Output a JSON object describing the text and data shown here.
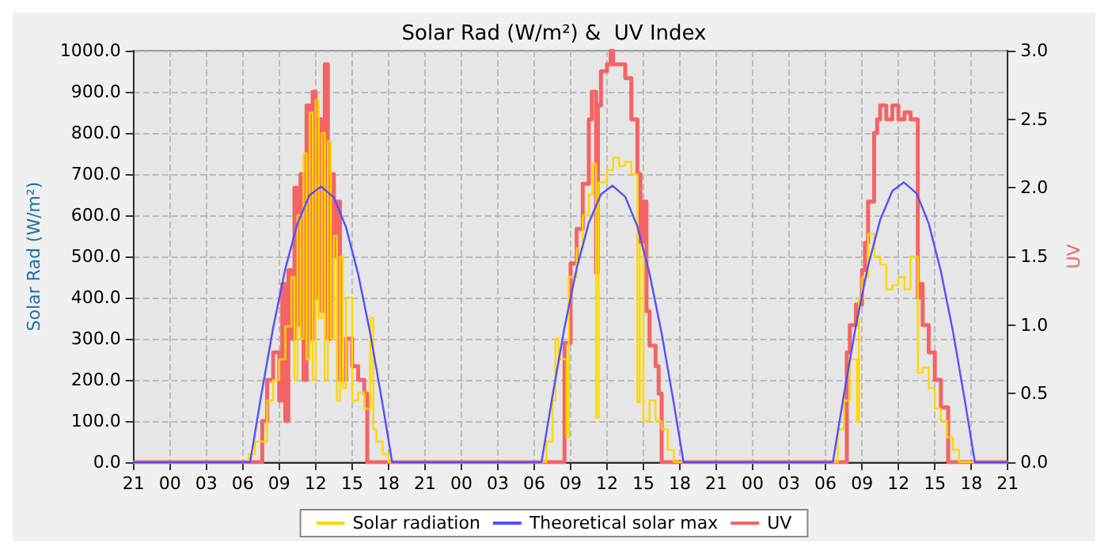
{
  "chart_data": {
    "type": "step",
    "title": "Solar Rad (W/m²) &  UV Index",
    "ylabel": "Solar Rad (W/m²)",
    "y2label": "UV",
    "xlim": [
      "--01-01T21:00",
      "--01-04T21:00"
    ],
    "xticks": [
      {
        "value": "--01-01T21:00",
        "label": "21"
      },
      {
        "value": "--01-02T00:00",
        "label": "00"
      },
      {
        "value": "--01-02T03:00",
        "label": "03"
      },
      {
        "value": "--01-02T06:00",
        "label": "06"
      },
      {
        "value": "--01-02T09:00",
        "label": "09"
      },
      {
        "value": "--01-02T12:00",
        "label": "12"
      },
      {
        "value": "--01-02T15:00",
        "label": "15"
      },
      {
        "value": "--01-02T18:00",
        "label": "18"
      },
      {
        "value": "--01-02T21:00",
        "label": "21"
      },
      {
        "value": "--01-03T00:00",
        "label": "00"
      },
      {
        "value": "--01-03T03:00",
        "label": "03"
      },
      {
        "value": "--01-03T06:00",
        "label": "06"
      },
      {
        "value": "--01-03T09:00",
        "label": "09"
      },
      {
        "value": "--01-03T12:00",
        "label": "12"
      },
      {
        "value": "--01-03T15:00",
        "label": "15"
      },
      {
        "value": "--01-03T18:00",
        "label": "18"
      },
      {
        "value": "--01-03T21:00",
        "label": "21"
      },
      {
        "value": "--01-04T00:00",
        "label": "00"
      },
      {
        "value": "--01-04T03:00",
        "label": "03"
      },
      {
        "value": "--01-04T06:00",
        "label": "06"
      },
      {
        "value": "--01-04T09:00",
        "label": "09"
      },
      {
        "value": "--01-04T12:00",
        "label": "12"
      },
      {
        "value": "--01-04T15:00",
        "label": "15"
      },
      {
        "value": "--01-04T18:00",
        "label": "18"
      },
      {
        "value": "--01-04T21:00",
        "label": "21"
      }
    ],
    "ylim": [
      0,
      1000
    ],
    "yticks": [
      {
        "value": 0,
        "label": "0.0"
      },
      {
        "value": 100,
        "label": "100.0"
      },
      {
        "value": 200,
        "label": "200.0"
      },
      {
        "value": 300,
        "label": "300.0"
      },
      {
        "value": 400,
        "label": "400.0"
      },
      {
        "value": 500,
        "label": "500.0"
      },
      {
        "value": 600,
        "label": "600.0"
      },
      {
        "value": 700,
        "label": "700.0"
      },
      {
        "value": 800,
        "label": "800.0"
      },
      {
        "value": 900,
        "label": "900.0"
      },
      {
        "value": 1000,
        "label": "1000.0"
      }
    ],
    "y2lim": [
      0,
      3
    ],
    "y2ticks": [
      {
        "value": 0,
        "label": "0.0"
      },
      0.5,
      {
        "value": 1,
        "label": "1.0"
      },
      1.5,
      {
        "value": 2,
        "label": "2.0"
      },
      2.5,
      {
        "value": 3,
        "label": "3.0"
      }
    ],
    "grid": true,
    "legend": "bottom",
    "series": [
      {
        "name": "Solar radiation",
        "type": "step",
        "color": "#ffd700",
        "x": [
          "--01-01T21:00",
          "--01-02T06:00",
          "--01-02T06:30",
          "--01-02T07:00",
          "--01-02T08:00",
          "--01-02T08:30",
          "--01-02T09:00",
          "--01-02T09:30",
          "--01-02T10:00",
          "--01-02T10:15",
          "--01-02T10:30",
          "--01-02T10:45",
          "--01-02T11:00",
          "--01-02T11:15",
          "--01-02T11:30",
          "--01-02T11:45",
          "--01-02T12:00",
          "--01-02T12:15",
          "--01-02T12:30",
          "--01-02T12:45",
          "--01-02T13:00",
          "--01-02T13:15",
          "--01-02T13:30",
          "--01-02T13:45",
          "--01-02T14:00",
          "--01-02T14:15",
          "--01-02T14:30",
          "--01-02T15:00",
          "--01-02T15:30",
          "--01-02T16:00",
          "--01-02T16:30",
          "--01-02T16:45",
          "--01-02T17:00",
          "--01-02T17:30",
          "--01-02T18:00",
          "--01-03T06:00",
          "--01-03T07:00",
          "--01-03T07:30",
          "--01-03T07:45",
          "--01-03T08:00",
          "--01-03T08:40",
          "--01-03T08:51",
          "--01-03T09:30",
          "--01-03T10:00",
          "--01-03T10:30",
          "--01-03T10:48",
          "--01-03T11:06",
          "--01-03T11:18",
          "--01-03T12:00",
          "--01-03T12:30",
          "--01-03T13:00",
          "--01-03T13:30",
          "--01-03T14:00",
          "--01-03T14:30",
          "--01-03T14:42",
          "--01-03T15:00",
          "--01-03T15:30",
          "--01-03T16:00",
          "--01-03T16:30",
          "--01-03T17:00",
          "--01-03T17:30",
          "--01-04T06:00",
          "--01-04T07:00",
          "--01-04T07:30",
          "--01-04T08:00",
          "--01-04T08:36",
          "--01-04T08:45",
          "--01-04T09:00",
          "--01-04T09:30",
          "--01-04T10:00",
          "--01-04T10:30",
          "--01-04T11:00",
          "--01-04T11:30",
          "--01-04T12:00",
          "--01-04T12:30",
          "--01-04T13:00",
          "--01-04T13:36",
          "--01-04T14:00",
          "--01-04T14:30",
          "--01-04T15:00",
          "--01-04T15:30",
          "--01-04T16:00",
          "--01-04T16:30",
          "--01-04T17:00",
          "--01-04T21:00"
        ],
        "values": [
          0,
          0,
          20,
          50,
          150,
          200,
          250,
          330,
          450,
          200,
          600,
          300,
          750,
          250,
          850,
          200,
          880,
          350,
          800,
          200,
          780,
          300,
          550,
          150,
          500,
          180,
          400,
          150,
          170,
          130,
          350,
          80,
          50,
          20,
          0,
          0,
          50,
          150,
          300,
          250,
          60,
          450,
          520,
          600,
          650,
          725,
          108,
          680,
          710,
          740,
          720,
          730,
          700,
          145,
          530,
          100,
          150,
          100,
          80,
          30,
          0,
          0,
          80,
          150,
          250,
          98,
          400,
          450,
          555,
          500,
          480,
          420,
          430,
          450,
          420,
          500,
          217,
          230,
          180,
          130,
          100,
          60,
          30,
          0,
          0
        ]
      },
      {
        "name": "Theoretical solar max",
        "type": "line",
        "color": "#5050ff",
        "x": [
          "--01-01T21:00",
          "--01-02T06:36",
          "--01-02T07:30",
          "--01-02T08:30",
          "--01-02T09:30",
          "--01-02T10:30",
          "--01-02T11:30",
          "--01-02T12:27",
          "--01-02T13:30",
          "--01-02T14:30",
          "--01-02T15:30",
          "--01-02T16:30",
          "--01-02T17:30",
          "--01-02T18:18",
          "--01-03T06:36",
          "--01-03T07:30",
          "--01-03T08:30",
          "--01-03T09:30",
          "--01-03T10:30",
          "--01-03T11:30",
          "--01-03T12:27",
          "--01-03T13:30",
          "--01-03T14:30",
          "--01-03T15:30",
          "--01-03T16:30",
          "--01-03T17:30",
          "--01-03T18:18",
          "--01-04T06:36",
          "--01-04T07:30",
          "--01-04T08:30",
          "--01-04T09:30",
          "--01-04T10:30",
          "--01-04T11:30",
          "--01-04T12:27",
          "--01-04T13:30",
          "--01-04T14:30",
          "--01-04T15:30",
          "--01-04T16:30",
          "--01-04T17:30",
          "--01-04T18:18",
          "--01-04T21:00"
        ],
        "values": [
          0,
          0,
          160,
          327,
          470,
          580,
          649,
          670,
          643,
          571,
          457,
          312,
          143,
          0,
          0,
          160,
          328,
          471,
          582,
          651,
          672,
          645,
          573,
          458,
          313,
          143,
          0,
          0,
          162,
          332,
          477,
          589,
          659,
          680,
          653,
          580,
          464,
          317,
          145,
          0,
          0
        ]
      },
      {
        "name": "UV",
        "type": "step",
        "axis": "y2",
        "color": "#f46464",
        "x": [
          "--01-01T21:00",
          "--01-02T07:36",
          "--01-02T08:00",
          "--01-02T08:30",
          "--01-02T09:00",
          "--01-02T09:15",
          "--01-02T09:30",
          "--01-02T09:45",
          "--01-02T10:00",
          "--01-02T10:15",
          "--01-02T10:30",
          "--01-02T10:45",
          "--01-02T11:00",
          "--01-02T11:15",
          "--01-02T11:30",
          "--01-02T11:45",
          "--01-02T12:00",
          "--01-02T12:15",
          "--01-02T12:30",
          "--01-02T12:45",
          "--01-02T13:00",
          "--01-02T13:15",
          "--01-02T13:30",
          "--01-02T13:45",
          "--01-02T14:00",
          "--01-02T14:30",
          "--01-02T15:00",
          "--01-02T15:30",
          "--01-02T16:00",
          "--01-02T16:15",
          "--01-03T08:30",
          "--01-03T09:00",
          "--01-03T09:30",
          "--01-03T10:00",
          "--01-03T10:30",
          "--01-03T10:45",
          "--01-03T11:06",
          "--01-03T11:15",
          "--01-03T11:30",
          "--01-03T12:00",
          "--01-03T12:18",
          "--01-03T12:30",
          "--01-03T13:30",
          "--01-03T14:00",
          "--01-03T14:30",
          "--01-03T14:45",
          "--01-03T15:00",
          "--01-03T15:15",
          "--01-03T15:30",
          "--01-03T16:00",
          "--01-03T16:15",
          "--01-03T16:30",
          "--01-04T07:45",
          "--01-04T08:00",
          "--01-04T08:30",
          "--01-04T09:00",
          "--01-04T09:15",
          "--01-04T09:30",
          "--01-04T10:00",
          "--01-04T10:15",
          "--01-04T10:30",
          "--01-04T11:00",
          "--01-04T11:30",
          "--01-04T12:00",
          "--01-04T12:30",
          "--01-04T13:00",
          "--01-04T13:36",
          "--01-04T13:45",
          "--01-04T14:00",
          "--01-04T14:30",
          "--01-04T15:00",
          "--01-04T15:30",
          "--01-04T16:06",
          "--01-04T21:00"
        ],
        "values": [
          0,
          0.3,
          0.6,
          0.8,
          0.45,
          1.3,
          0.3,
          1.4,
          0.9,
          2.0,
          1.0,
          2.1,
          0.6,
          2.6,
          0.9,
          2.7,
          1.2,
          2.5,
          1.1,
          2.9,
          0.9,
          2.1,
          1.5,
          1.9,
          0.6,
          0.9,
          0.7,
          0.6,
          0.5,
          0,
          0.87,
          1.45,
          1.7,
          2.03,
          2.5,
          2.7,
          1.38,
          2.6,
          2.85,
          2.9,
          3.0,
          2.9,
          2.8,
          2.5,
          2.1,
          1.6,
          1.9,
          1.1,
          0.85,
          0.7,
          0.5,
          0,
          0.8,
          1.0,
          1.15,
          1.4,
          1.6,
          1.9,
          2.4,
          2.5,
          2.6,
          2.5,
          2.6,
          2.5,
          2.55,
          2.5,
          1.2,
          1.3,
          1.0,
          0.8,
          0.6,
          0.4,
          0,
          0
        ]
      }
    ]
  }
}
